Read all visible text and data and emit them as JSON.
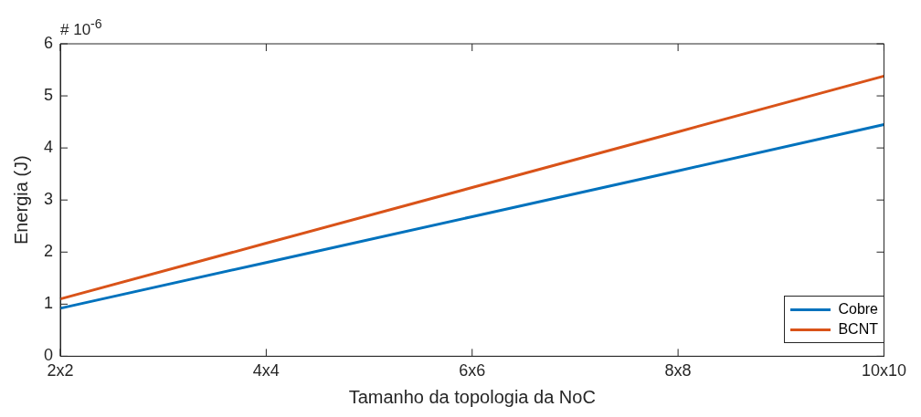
{
  "chart_data": {
    "type": "line",
    "xlabel": "Tamanho da topologia da NoC",
    "ylabel": "Energia (J)",
    "categories": [
      "2x2",
      "4x4",
      "6x6",
      "8x8",
      "10x10"
    ],
    "series": [
      {
        "name": "Cobre",
        "color": "#0072bd",
        "values": [
          0.92,
          1.8,
          2.68,
          3.56,
          4.45
        ]
      },
      {
        "name": "BCNT",
        "color": "#d95319",
        "values": [
          1.1,
          2.17,
          3.24,
          4.31,
          5.38
        ]
      }
    ],
    "ylim": [
      0,
      6
    ],
    "yticks": [
      0,
      1,
      2,
      3,
      4,
      5,
      6
    ],
    "grid": false,
    "legend": "bottom right",
    "marker": "none",
    "line_style": "solid",
    "annotations": [
      "# 10$^{-6}$"
    ]
  }
}
